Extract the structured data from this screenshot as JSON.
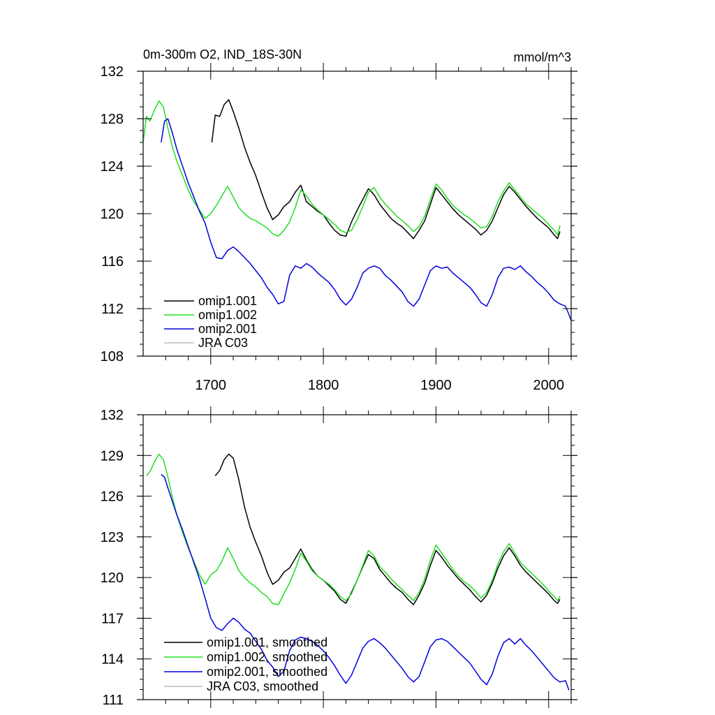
{
  "figure": {
    "colors": {
      "omip1_001": "#000000",
      "omip1_002": "#22dd22",
      "omip2_001": "#0000dd",
      "jra_c03": "#bbbbbb"
    }
  },
  "chart_data": [
    {
      "type": "line",
      "title": "0m-300m O2, IND_18S-30N",
      "units": "mmol/m^3",
      "xlabel": "",
      "ylabel": "",
      "xlim": [
        1640,
        2020
      ],
      "ylim": [
        108,
        132
      ],
      "xticks": [
        1700,
        1800,
        1900,
        2000
      ],
      "xtick_labels": [
        "1700",
        "1800",
        "1900",
        "2000"
      ],
      "yticks": [
        108,
        112,
        116,
        120,
        124,
        128,
        132
      ],
      "ytick_labels": [
        "108",
        "112",
        "116",
        "120",
        "124",
        "128",
        "132"
      ],
      "legend_position": "bottom-left",
      "series": [
        {
          "name": "omip1.001",
          "color": "#000000",
          "x": [
            1701,
            1704,
            1708,
            1712,
            1716,
            1720,
            1725,
            1730,
            1735,
            1740,
            1745,
            1750,
            1755,
            1760,
            1765,
            1770,
            1775,
            1780,
            1785,
            1790,
            1795,
            1800,
            1805,
            1810,
            1815,
            1820,
            1825,
            1830,
            1835,
            1840,
            1845,
            1850,
            1855,
            1860,
            1865,
            1870,
            1875,
            1880,
            1885,
            1890,
            1895,
            1900,
            1905,
            1910,
            1915,
            1920,
            1925,
            1930,
            1935,
            1940,
            1945,
            1950,
            1955,
            1960,
            1965,
            1970,
            1975,
            1980,
            1985,
            1990,
            1995,
            2000,
            2005,
            2008,
            2010
          ],
          "values": [
            126,
            128.3,
            128.2,
            129.2,
            129.6,
            128.6,
            127.2,
            125.6,
            124.3,
            123.2,
            121.8,
            120.5,
            119.5,
            119.9,
            120.6,
            121,
            121.8,
            122.4,
            121,
            120.6,
            120.2,
            119.9,
            119.2,
            118.6,
            118.2,
            118.1,
            119.3,
            120.3,
            121.2,
            122.1,
            121.6,
            120.8,
            120.2,
            119.6,
            119.2,
            118.9,
            118.4,
            117.9,
            118.6,
            119.4,
            120.8,
            122.2,
            121.6,
            121,
            120.4,
            119.9,
            119.5,
            119.1,
            118.7,
            118.2,
            118.6,
            119.4,
            120.5,
            121.6,
            122.3,
            121.8,
            121.2,
            120.6,
            120.1,
            119.6,
            119.2,
            118.8,
            118.2,
            117.9,
            118.5
          ]
        },
        {
          "name": "omip1.002",
          "color": "#22dd22",
          "x": [
            1640,
            1643,
            1646,
            1650,
            1654,
            1658,
            1662,
            1666,
            1670,
            1675,
            1680,
            1685,
            1690,
            1695,
            1700,
            1705,
            1710,
            1715,
            1720,
            1725,
            1730,
            1735,
            1740,
            1745,
            1750,
            1755,
            1760,
            1765,
            1770,
            1775,
            1780,
            1785,
            1790,
            1795,
            1800,
            1805,
            1810,
            1815,
            1820,
            1825,
            1830,
            1835,
            1840,
            1845,
            1850,
            1855,
            1860,
            1865,
            1870,
            1875,
            1880,
            1885,
            1890,
            1895,
            1900,
            1905,
            1910,
            1915,
            1920,
            1925,
            1930,
            1935,
            1940,
            1945,
            1950,
            1955,
            1960,
            1965,
            1970,
            1975,
            1980,
            1985,
            1990,
            1995,
            2000,
            2005,
            2008,
            2010
          ],
          "values": [
            126,
            128.2,
            127.8,
            128.7,
            129.5,
            129,
            127.2,
            125.6,
            124.4,
            123.2,
            122,
            121,
            120.3,
            119.6,
            120,
            120.7,
            121.5,
            122.3,
            121.4,
            120.5,
            120,
            119.6,
            119.4,
            119.1,
            118.8,
            118.3,
            118.1,
            118.6,
            119.3,
            120.5,
            122,
            121.5,
            120.8,
            120.3,
            119.9,
            119.5,
            119.1,
            118.6,
            118.4,
            118.6,
            119.5,
            120.6,
            121.8,
            122.2,
            121.4,
            120.8,
            120.3,
            119.8,
            119.4,
            119,
            118.5,
            118.9,
            119.8,
            121.2,
            122.5,
            122,
            121.3,
            120.7,
            120.3,
            119.9,
            119.6,
            119.2,
            118.8,
            118.9,
            119.8,
            121,
            121.9,
            122.6,
            122,
            121.4,
            120.8,
            120.4,
            120,
            119.6,
            119.1,
            118.6,
            118.2,
            119
          ]
        },
        {
          "name": "omip2.001",
          "color": "#0000dd",
          "x": [
            1656,
            1659,
            1662,
            1666,
            1670,
            1675,
            1680,
            1685,
            1690,
            1695,
            1700,
            1705,
            1710,
            1715,
            1720,
            1725,
            1730,
            1735,
            1740,
            1745,
            1750,
            1755,
            1760,
            1765,
            1770,
            1775,
            1780,
            1785,
            1790,
            1795,
            1800,
            1805,
            1810,
            1815,
            1820,
            1825,
            1830,
            1835,
            1840,
            1845,
            1850,
            1855,
            1860,
            1865,
            1870,
            1875,
            1880,
            1885,
            1890,
            1895,
            1900,
            1905,
            1910,
            1915,
            1920,
            1925,
            1930,
            1935,
            1940,
            1945,
            1950,
            1955,
            1960,
            1965,
            1970,
            1975,
            1980,
            1985,
            1990,
            1995,
            2000,
            2005,
            2010,
            2015,
            2018,
            2020
          ],
          "values": [
            126,
            127.8,
            128,
            126.8,
            125.4,
            124,
            122.6,
            121.4,
            120.2,
            119.2,
            117.6,
            116.3,
            116.2,
            116.9,
            117.2,
            116.8,
            116.3,
            115.8,
            115.2,
            114.6,
            113.8,
            113.2,
            112.4,
            112.6,
            114.8,
            115.6,
            115.4,
            115.8,
            115.5,
            115,
            114.6,
            114.2,
            113.6,
            112.8,
            112.3,
            112.8,
            113.8,
            115,
            115.4,
            115.6,
            115.4,
            114.8,
            114.4,
            113.9,
            113.4,
            112.6,
            112.2,
            112.8,
            114,
            115.2,
            115.6,
            115.4,
            115.5,
            115,
            114.6,
            114.2,
            113.8,
            113.2,
            112.5,
            112.2,
            113.2,
            114.6,
            115.4,
            115.5,
            115.3,
            115.6,
            115.1,
            114.7,
            114.2,
            113.8,
            113.3,
            112.7,
            112.4,
            112.2,
            111.5,
            111
          ]
        },
        {
          "name": "JRA C03",
          "color": "#bbbbbb",
          "x": [],
          "values": []
        }
      ]
    },
    {
      "type": "line",
      "title": "",
      "xlabel": "",
      "ylabel": "",
      "xlim": [
        1640,
        2020
      ],
      "ylim": [
        111,
        132
      ],
      "xticks": [
        1700,
        1800,
        1900,
        2000
      ],
      "yticks": [
        111,
        114,
        117,
        120,
        123,
        126,
        129,
        132
      ],
      "ytick_labels": [
        "111",
        "114",
        "117",
        "120",
        "123",
        "126",
        "129",
        "132"
      ],
      "legend_position": "bottom-left",
      "series": [
        {
          "name": "omip1.001, smoothed",
          "color": "#000000",
          "x": [
            1704,
            1708,
            1712,
            1716,
            1720,
            1725,
            1730,
            1735,
            1740,
            1745,
            1750,
            1755,
            1760,
            1765,
            1770,
            1775,
            1780,
            1785,
            1790,
            1795,
            1800,
            1805,
            1810,
            1815,
            1820,
            1825,
            1830,
            1835,
            1840,
            1845,
            1850,
            1855,
            1860,
            1865,
            1870,
            1875,
            1880,
            1885,
            1890,
            1895,
            1900,
            1905,
            1910,
            1915,
            1920,
            1925,
            1930,
            1935,
            1940,
            1945,
            1950,
            1955,
            1960,
            1965,
            1970,
            1975,
            1980,
            1985,
            1990,
            1995,
            2000,
            2005,
            2008,
            2010
          ],
          "values": [
            127.5,
            127.9,
            128.7,
            129.1,
            128.8,
            127.2,
            125.2,
            123.7,
            122.6,
            121.6,
            120.4,
            119.5,
            119.8,
            120.4,
            120.7,
            121.4,
            122.1,
            121.3,
            120.6,
            120.1,
            119.8,
            119.4,
            119,
            118.4,
            118.1,
            118.9,
            119.8,
            120.8,
            121.7,
            121.4,
            120.6,
            120.1,
            119.6,
            119.2,
            118.9,
            118.4,
            118,
            118.7,
            119.6,
            120.9,
            122,
            121.5,
            120.9,
            120.4,
            119.9,
            119.5,
            119.1,
            118.6,
            118.2,
            118.7,
            119.6,
            120.7,
            121.6,
            122.2,
            121.6,
            120.9,
            120.4,
            120,
            119.6,
            119.2,
            118.8,
            118.3,
            118.1,
            118.4
          ]
        },
        {
          "name": "omip1.002, smoothed",
          "color": "#22dd22",
          "x": [
            1643,
            1646,
            1650,
            1654,
            1658,
            1662,
            1666,
            1670,
            1675,
            1680,
            1685,
            1690,
            1695,
            1700,
            1705,
            1710,
            1715,
            1720,
            1725,
            1730,
            1735,
            1740,
            1745,
            1750,
            1755,
            1760,
            1765,
            1770,
            1775,
            1780,
            1785,
            1790,
            1795,
            1800,
            1805,
            1810,
            1815,
            1820,
            1825,
            1830,
            1835,
            1840,
            1845,
            1850,
            1855,
            1860,
            1865,
            1870,
            1875,
            1880,
            1885,
            1890,
            1895,
            1900,
            1905,
            1910,
            1915,
            1920,
            1925,
            1930,
            1935,
            1940,
            1945,
            1950,
            1955,
            1960,
            1965,
            1970,
            1975,
            1980,
            1985,
            1990,
            1995,
            2000,
            2005,
            2008,
            2010
          ],
          "values": [
            127.5,
            127.8,
            128.5,
            129.1,
            128.7,
            127.4,
            125.9,
            124.6,
            123.3,
            122.2,
            121.2,
            120.2,
            119.5,
            120.2,
            120.5,
            121.2,
            122.2,
            121.4,
            120.5,
            120,
            119.6,
            119.3,
            118.9,
            118.6,
            118.1,
            118,
            118.8,
            119.6,
            120.6,
            121.8,
            121.2,
            120.5,
            120.1,
            119.8,
            119.5,
            119.1,
            118.6,
            118.3,
            118.8,
            119.8,
            120.9,
            122,
            121.6,
            120.8,
            120.4,
            119.9,
            119.5,
            119.1,
            118.7,
            118.3,
            118.9,
            119.9,
            121.3,
            122.4,
            121.8,
            121.2,
            120.6,
            120.1,
            119.7,
            119.4,
            119,
            118.5,
            118.9,
            119.8,
            121,
            121.9,
            122.5,
            121.8,
            121.1,
            120.7,
            120.3,
            119.9,
            119.5,
            119,
            118.6,
            118.3,
            118.6
          ]
        },
        {
          "name": "omip2.001, smoothed",
          "color": "#0000dd",
          "x": [
            1656,
            1659,
            1662,
            1666,
            1670,
            1675,
            1680,
            1685,
            1690,
            1695,
            1700,
            1705,
            1710,
            1715,
            1720,
            1725,
            1730,
            1735,
            1740,
            1745,
            1750,
            1755,
            1760,
            1765,
            1770,
            1775,
            1780,
            1785,
            1790,
            1795,
            1800,
            1805,
            1810,
            1815,
            1820,
            1825,
            1830,
            1835,
            1840,
            1845,
            1850,
            1855,
            1860,
            1865,
            1870,
            1875,
            1880,
            1885,
            1890,
            1895,
            1900,
            1905,
            1910,
            1915,
            1920,
            1925,
            1930,
            1935,
            1940,
            1945,
            1950,
            1955,
            1960,
            1965,
            1970,
            1975,
            1980,
            1985,
            1990,
            1995,
            2000,
            2005,
            2010,
            2015,
            2018
          ],
          "values": [
            127.6,
            127.4,
            126.6,
            125.6,
            124.6,
            123.5,
            122.3,
            121.1,
            119.9,
            118.5,
            117,
            116.3,
            116.1,
            116.6,
            117,
            116.7,
            116.2,
            115.9,
            115.3,
            114.7,
            113.9,
            113.4,
            112.7,
            113.1,
            114.6,
            115.4,
            115.6,
            115.5,
            115.3,
            115,
            114.6,
            114.1,
            113.5,
            112.8,
            112.2,
            112.8,
            113.8,
            114.8,
            115.3,
            115.5,
            115.2,
            114.8,
            114.3,
            113.8,
            113.3,
            112.7,
            112.3,
            112.7,
            113.8,
            114.9,
            115.4,
            115.5,
            115.3,
            114.9,
            114.5,
            114.1,
            113.7,
            113.1,
            112.5,
            112.1,
            112.9,
            114.2,
            115.2,
            115.5,
            115.1,
            115.5,
            115,
            114.6,
            114.1,
            113.6,
            113.1,
            112.6,
            112.3,
            112.4,
            111.7
          ]
        },
        {
          "name": "JRA C03, smoothed",
          "color": "#bbbbbb",
          "x": [],
          "values": []
        }
      ]
    }
  ]
}
